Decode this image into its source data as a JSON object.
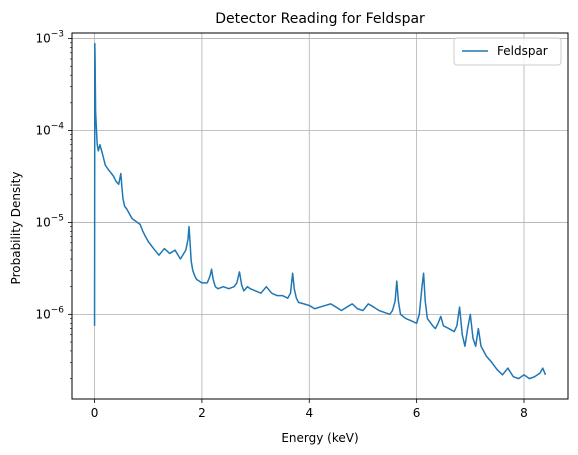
{
  "chart_data": {
    "type": "line",
    "title": "Detector Reading for Feldspar",
    "xlabel": "Energy (keV)",
    "ylabel": "Probability Density",
    "xscale": "linear",
    "yscale": "log",
    "xlim": [
      -0.42,
      8.82
    ],
    "ylim": [
      1.2e-07,
      0.00115
    ],
    "xticks": [
      0,
      2,
      4,
      6,
      8
    ],
    "xtick_labels": [
      "0",
      "2",
      "4",
      "6",
      "8"
    ],
    "yticks": [
      1e-06,
      1e-05,
      0.0001,
      0.001
    ],
    "ytick_labels": [
      {
        "base": "10",
        "exp": "−6"
      },
      {
        "base": "10",
        "exp": "−5"
      },
      {
        "base": "10",
        "exp": "−4"
      },
      {
        "base": "10",
        "exp": "−3"
      }
    ],
    "grid": true,
    "legend": {
      "position": "upper-right",
      "entries": [
        "Feldspar"
      ]
    },
    "series": [
      {
        "name": "Feldspar",
        "color": "#1f77b4",
        "x": [
          0.0,
          0.005,
          0.01,
          0.015,
          0.02,
          0.03,
          0.04,
          0.05,
          0.07,
          0.1,
          0.15,
          0.2,
          0.25,
          0.3,
          0.35,
          0.4,
          0.45,
          0.49,
          0.51,
          0.53,
          0.56,
          0.6,
          0.7,
          0.8,
          0.85,
          0.9,
          0.95,
          1.0,
          1.1,
          1.2,
          1.3,
          1.4,
          1.5,
          1.6,
          1.7,
          1.74,
          1.76,
          1.78,
          1.8,
          1.83,
          1.87,
          1.9,
          2.0,
          2.1,
          2.15,
          2.18,
          2.21,
          2.25,
          2.3,
          2.4,
          2.5,
          2.6,
          2.65,
          2.7,
          2.74,
          2.78,
          2.85,
          2.9,
          3.0,
          3.1,
          3.2,
          3.3,
          3.4,
          3.5,
          3.6,
          3.65,
          3.69,
          3.72,
          3.76,
          3.8,
          3.9,
          4.0,
          4.1,
          4.2,
          4.3,
          4.4,
          4.5,
          4.6,
          4.7,
          4.8,
          4.9,
          5.0,
          5.1,
          5.2,
          5.3,
          5.4,
          5.5,
          5.55,
          5.6,
          5.63,
          5.66,
          5.7,
          5.8,
          5.9,
          6.0,
          6.05,
          6.1,
          6.13,
          6.16,
          6.2,
          6.3,
          6.35,
          6.4,
          6.45,
          6.5,
          6.6,
          6.7,
          6.75,
          6.8,
          6.85,
          6.9,
          6.95,
          7.0,
          7.05,
          7.1,
          7.15,
          7.2,
          7.3,
          7.4,
          7.5,
          7.6,
          7.7,
          7.8,
          7.9,
          8.0,
          8.1,
          8.2,
          8.3,
          8.35,
          8.4
        ],
        "y": [
          7.5e-07,
          0.00088,
          0.0006,
          0.0003,
          0.00016,
          0.00012,
          9e-05,
          7e-05,
          6e-05,
          7e-05,
          5.5e-05,
          4.2e-05,
          3.8e-05,
          3.5e-05,
          3.2e-05,
          2.8e-05,
          2.6e-05,
          3.4e-05,
          2.4e-05,
          1.8e-05,
          1.5e-05,
          1.4e-05,
          1.1e-05,
          1e-05,
          9.5e-06,
          8e-06,
          7e-06,
          6.2e-06,
          5.2e-06,
          4.4e-06,
          5.2e-06,
          4.6e-06,
          5e-06,
          4e-06,
          5e-06,
          6.5e-06,
          9e-06,
          6e-06,
          3.8e-06,
          3e-06,
          2.6e-06,
          2.4e-06,
          2.2e-06,
          2.2e-06,
          2.6e-06,
          3.1e-06,
          2.4e-06,
          2e-06,
          1.9e-06,
          2e-06,
          1.9e-06,
          2e-06,
          2.2e-06,
          2.9e-06,
          2.1e-06,
          1.8e-06,
          2e-06,
          1.9e-06,
          1.8e-06,
          1.7e-06,
          2e-06,
          1.7e-06,
          1.6e-06,
          1.6e-06,
          1.5e-06,
          1.7e-06,
          2.8e-06,
          1.9e-06,
          1.5e-06,
          1.35e-06,
          1.3e-06,
          1.25e-06,
          1.15e-06,
          1.2e-06,
          1.25e-06,
          1.3e-06,
          1.2e-06,
          1.1e-06,
          1.2e-06,
          1.3e-06,
          1.15e-06,
          1.1e-06,
          1.3e-06,
          1.2e-06,
          1.1e-06,
          1.05e-06,
          1e-06,
          1.1e-06,
          1.4e-06,
          2.3e-06,
          1.4e-06,
          1e-06,
          9e-07,
          8.5e-07,
          8e-07,
          1e-06,
          2e-06,
          2.8e-06,
          1.4e-06,
          9e-07,
          7.5e-07,
          7e-07,
          8e-07,
          9.5e-07,
          7.5e-07,
          7e-07,
          6.5e-07,
          7.5e-07,
          1.2e-06,
          6e-07,
          4.5e-07,
          7e-07,
          1e-06,
          5.5e-07,
          4.5e-07,
          7e-07,
          4.5e-07,
          3.5e-07,
          3e-07,
          2.5e-07,
          2.2e-07,
          2.6e-07,
          2.1e-07,
          2e-07,
          2.2e-07,
          2e-07,
          2.1e-07,
          2.3e-07,
          2.6e-07,
          2.2e-07
        ]
      }
    ]
  }
}
